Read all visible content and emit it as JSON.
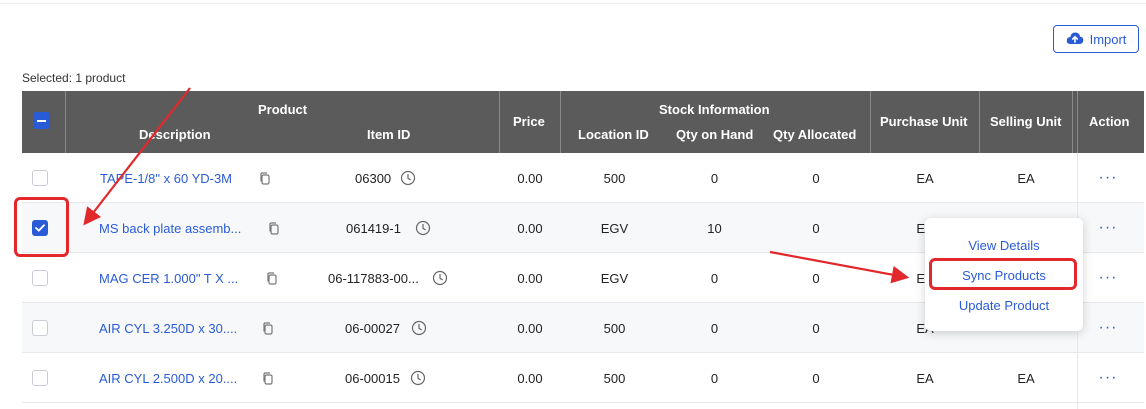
{
  "toolbar": {
    "import_label": "Import"
  },
  "selection": {
    "text": "Selected: 1 product"
  },
  "table": {
    "headers": {
      "product": "Product",
      "description": "Description",
      "item_id": "Item ID",
      "price": "Price",
      "stock_information": "Stock Information",
      "location_id": "Location ID",
      "qty_on_hand": "Qty on Hand",
      "qty_allocated": "Qty Allocated",
      "purchase_unit": "Purchase Unit",
      "selling_unit": "Selling Unit",
      "action": "Action"
    },
    "rows": [
      {
        "description": "TAPE-1/8\" x 60 YD-3M",
        "item_id": "06300",
        "price": "0.00",
        "location_id": "500",
        "qty_on_hand": "0",
        "qty_allocated": "0",
        "purchase_unit": "EA",
        "selling_unit": "EA",
        "checked": false
      },
      {
        "description": "MS back plate assemb...",
        "item_id": "061419-1",
        "price": "0.00",
        "location_id": "EGV",
        "qty_on_hand": "10",
        "qty_allocated": "0",
        "purchase_unit": "EA",
        "selling_unit": "",
        "checked": true
      },
      {
        "description": "MAG CER 1.000\" T X ...",
        "item_id": "06-117883-00...",
        "price": "0.00",
        "location_id": "EGV",
        "qty_on_hand": "0",
        "qty_allocated": "0",
        "purchase_unit": "EA",
        "selling_unit": "",
        "checked": false
      },
      {
        "description": "AIR CYL 3.250D x 30....",
        "item_id": "06-00027",
        "price": "0.00",
        "location_id": "500",
        "qty_on_hand": "0",
        "qty_allocated": "0",
        "purchase_unit": "EA",
        "selling_unit": "",
        "checked": false
      },
      {
        "description": "AIR CYL 2.500D x 20....",
        "item_id": "06-00015",
        "price": "0.00",
        "location_id": "500",
        "qty_on_hand": "0",
        "qty_allocated": "0",
        "purchase_unit": "EA",
        "selling_unit": "EA",
        "checked": false
      }
    ],
    "action_label": "···"
  },
  "action_menu": {
    "items": [
      "View Details",
      "Sync Products",
      "Update Product"
    ]
  },
  "colors": {
    "accent": "#2a5bd7",
    "header_bg": "#5b5b5b",
    "annotation": "#e3282c"
  },
  "icons": [
    "cloud-upload-icon",
    "copy-icon",
    "clock-icon",
    "more-dots-icon",
    "checkbox-minus-icon",
    "check-icon"
  ]
}
